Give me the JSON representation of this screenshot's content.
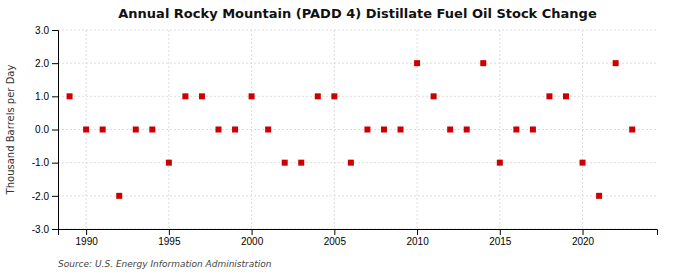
{
  "chart_data": {
    "type": "scatter",
    "title": "Annual Rocky Mountain (PADD 4) Distillate Fuel Oil Stock Change",
    "y_label": "Thousand Barrels per Day",
    "annotations": [
      "Source: U.S. Energy Information Administration"
    ],
    "x": [
      1989,
      1990,
      1991,
      1992,
      1993,
      1994,
      1995,
      1996,
      1997,
      1998,
      1999,
      2000,
      2001,
      2002,
      2003,
      2004,
      2005,
      2006,
      2007,
      2008,
      2009,
      2010,
      2011,
      2012,
      2013,
      2014,
      2015,
      2016,
      2017,
      2018,
      2019,
      2020,
      2021,
      2022,
      2023
    ],
    "values": [
      1.0,
      0.0,
      0.0,
      -2.0,
      0.0,
      0.0,
      -1.0,
      1.0,
      1.0,
      0.0,
      0.0,
      1.0,
      0.0,
      -1.0,
      -1.0,
      1.0,
      1.0,
      -1.0,
      0.0,
      0.0,
      0.0,
      2.0,
      1.0,
      0.0,
      0.0,
      2.0,
      -1.0,
      0.0,
      0.0,
      1.0,
      1.0,
      -1.0,
      -2.0,
      2.0,
      0.0
    ],
    "color": "#cc0000",
    "marker": "square",
    "xlim": [
      1988.3,
      2024.5
    ],
    "xticks": [
      1990,
      1995,
      2000,
      2005,
      2010,
      2015,
      2020
    ],
    "ylim": [
      -3.0,
      3.0
    ],
    "yticks": [
      {
        "value": -3.0,
        "label": "-3.0"
      },
      {
        "value": -2.0,
        "label": "-2.0"
      },
      {
        "value": -1.0,
        "label": "-1.0"
      },
      {
        "value": 0.0,
        "label": "0.0"
      },
      {
        "value": 1.0,
        "label": "1.0"
      },
      {
        "value": 2.0,
        "label": "2.0"
      },
      {
        "value": 3.0,
        "label": "3.0"
      }
    ],
    "grid": true
  }
}
